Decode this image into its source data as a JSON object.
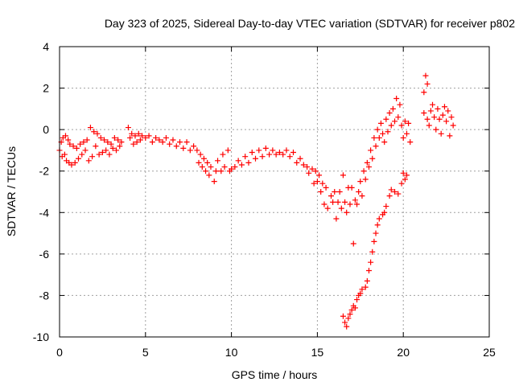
{
  "chart_data": {
    "type": "scatter",
    "title": "Day 323 of 2025, Sidereal Day-to-day VTEC variation (SDTVAR) for receiver p802",
    "xlabel": "GPS time / hours",
    "ylabel": "SDTVAR / TECUs",
    "xlim": [
      0,
      25
    ],
    "ylim": [
      -10,
      4
    ],
    "x_ticks": [
      0,
      5,
      10,
      15,
      20,
      25
    ],
    "x_tick_labels": [
      "0",
      "5",
      "10",
      "15",
      "20",
      "25"
    ],
    "y_ticks": [
      -10,
      -8,
      -6,
      -4,
      -2,
      0,
      2,
      4
    ],
    "y_tick_labels": [
      "-10",
      "-8",
      "-6",
      "-4",
      "-2",
      "0",
      "2",
      "4"
    ],
    "grid": true,
    "marker": "+",
    "color": "#ff0000",
    "series": [
      {
        "name": "SDTVAR",
        "points": [
          [
            0.0,
            -1.0
          ],
          [
            0.1,
            -0.6
          ],
          [
            0.15,
            -1.3
          ],
          [
            0.2,
            -0.4
          ],
          [
            0.3,
            -1.2
          ],
          [
            0.35,
            -0.3
          ],
          [
            0.4,
            -1.5
          ],
          [
            0.5,
            -0.5
          ],
          [
            0.55,
            -1.6
          ],
          [
            0.6,
            -0.7
          ],
          [
            0.7,
            -1.7
          ],
          [
            0.8,
            -0.8
          ],
          [
            0.9,
            -1.6
          ],
          [
            1.0,
            -0.9
          ],
          [
            1.1,
            -1.4
          ],
          [
            1.2,
            -0.7
          ],
          [
            1.3,
            -1.2
          ],
          [
            1.4,
            -0.6
          ],
          [
            1.5,
            -1.0
          ],
          [
            1.6,
            -0.5
          ],
          [
            1.7,
            -1.5
          ],
          [
            1.8,
            0.1
          ],
          [
            1.9,
            -1.3
          ],
          [
            2.0,
            -0.1
          ],
          [
            2.1,
            -0.8
          ],
          [
            2.2,
            -0.2
          ],
          [
            2.3,
            -1.2
          ],
          [
            2.4,
            -0.4
          ],
          [
            2.5,
            -1.1
          ],
          [
            2.6,
            -0.5
          ],
          [
            2.7,
            -1.0
          ],
          [
            2.8,
            -0.6
          ],
          [
            2.9,
            -1.2
          ],
          [
            3.0,
            -0.7
          ],
          [
            3.1,
            -0.9
          ],
          [
            3.2,
            -0.4
          ],
          [
            3.3,
            -1.0
          ],
          [
            3.4,
            -0.5
          ],
          [
            3.5,
            -0.8
          ],
          [
            3.6,
            -0.6
          ],
          [
            4.0,
            0.1
          ],
          [
            4.1,
            -0.4
          ],
          [
            4.2,
            -0.2
          ],
          [
            4.3,
            -0.7
          ],
          [
            4.4,
            -0.3
          ],
          [
            4.5,
            -0.6
          ],
          [
            4.6,
            -0.2
          ],
          [
            4.7,
            -0.5
          ],
          [
            4.8,
            -0.3
          ],
          [
            5.0,
            -0.4
          ],
          [
            5.2,
            -0.3
          ],
          [
            5.4,
            -0.6
          ],
          [
            5.6,
            -0.4
          ],
          [
            5.8,
            -0.5
          ],
          [
            6.0,
            -0.6
          ],
          [
            6.2,
            -0.4
          ],
          [
            6.4,
            -0.7
          ],
          [
            6.6,
            -0.5
          ],
          [
            6.8,
            -0.8
          ],
          [
            7.0,
            -0.6
          ],
          [
            7.2,
            -0.9
          ],
          [
            7.4,
            -0.6
          ],
          [
            7.6,
            -1.0
          ],
          [
            7.8,
            -0.8
          ],
          [
            8.0,
            -1.0
          ],
          [
            8.1,
            -1.6
          ],
          [
            8.2,
            -1.2
          ],
          [
            8.3,
            -1.8
          ],
          [
            8.4,
            -1.4
          ],
          [
            8.5,
            -2.0
          ],
          [
            8.6,
            -1.6
          ],
          [
            8.7,
            -2.2
          ],
          [
            8.8,
            -1.8
          ],
          [
            9.0,
            -2.5
          ],
          [
            9.1,
            -2.0
          ],
          [
            9.2,
            -1.5
          ],
          [
            9.4,
            -2.0
          ],
          [
            9.5,
            -1.2
          ],
          [
            9.6,
            -1.8
          ],
          [
            9.8,
            -1.0
          ],
          [
            9.9,
            -2.0
          ],
          [
            10.0,
            -1.9
          ],
          [
            10.2,
            -1.8
          ],
          [
            10.4,
            -1.5
          ],
          [
            10.6,
            -1.7
          ],
          [
            10.8,
            -1.3
          ],
          [
            11.0,
            -1.6
          ],
          [
            11.2,
            -1.1
          ],
          [
            11.4,
            -1.4
          ],
          [
            11.6,
            -1.0
          ],
          [
            11.8,
            -1.3
          ],
          [
            12.0,
            -0.9
          ],
          [
            12.2,
            -1.2
          ],
          [
            12.4,
            -1.0
          ],
          [
            12.6,
            -1.2
          ],
          [
            12.8,
            -1.1
          ],
          [
            13.0,
            -1.2
          ],
          [
            13.2,
            -1.0
          ],
          [
            13.4,
            -1.3
          ],
          [
            13.6,
            -1.1
          ],
          [
            13.8,
            -1.6
          ],
          [
            14.0,
            -1.4
          ],
          [
            14.2,
            -1.7
          ],
          [
            14.4,
            -1.8
          ],
          [
            14.5,
            -2.1
          ],
          [
            14.7,
            -1.9
          ],
          [
            14.8,
            -2.6
          ],
          [
            14.9,
            -2.0
          ],
          [
            15.0,
            -2.5
          ],
          [
            15.1,
            -2.2
          ],
          [
            15.2,
            -3.0
          ],
          [
            15.3,
            -2.6
          ],
          [
            15.4,
            -3.6
          ],
          [
            15.5,
            -2.8
          ],
          [
            15.6,
            -3.8
          ],
          [
            15.8,
            -3.2
          ],
          [
            15.9,
            -3.5
          ],
          [
            16.0,
            -3.0
          ],
          [
            16.1,
            -4.3
          ],
          [
            16.2,
            -3.5
          ],
          [
            16.3,
            -3.0
          ],
          [
            16.4,
            -3.8
          ],
          [
            16.5,
            -2.2
          ],
          [
            16.6,
            -3.5
          ],
          [
            16.7,
            -4.0
          ],
          [
            16.8,
            -2.8
          ],
          [
            16.9,
            -3.6
          ],
          [
            17.0,
            -2.8
          ],
          [
            17.1,
            -5.5
          ],
          [
            17.2,
            -3.4
          ],
          [
            17.3,
            -3.6
          ],
          [
            17.4,
            -3.0
          ],
          [
            17.5,
            -2.5
          ],
          [
            17.6,
            -3.2
          ],
          [
            17.7,
            -2.0
          ],
          [
            17.8,
            -2.4
          ],
          [
            17.9,
            -1.6
          ],
          [
            18.0,
            -1.8
          ],
          [
            18.1,
            -1.0
          ],
          [
            18.2,
            -1.4
          ],
          [
            18.3,
            -0.4
          ],
          [
            18.4,
            -0.8
          ],
          [
            18.5,
            0.0
          ],
          [
            18.6,
            -0.4
          ],
          [
            18.7,
            0.3
          ],
          [
            18.8,
            -0.2
          ],
          [
            18.9,
            -0.6
          ],
          [
            19.0,
            0.5
          ],
          [
            19.1,
            -0.1
          ],
          [
            19.2,
            0.8
          ],
          [
            19.3,
            0.2
          ],
          [
            19.4,
            1.0
          ],
          [
            19.5,
            0.4
          ],
          [
            19.6,
            1.5
          ],
          [
            19.7,
            0.6
          ],
          [
            19.8,
            1.2
          ],
          [
            19.9,
            0.2
          ],
          [
            20.0,
            -0.4
          ],
          [
            20.1,
            0.4
          ],
          [
            20.2,
            -0.2
          ],
          [
            20.3,
            0.3
          ],
          [
            20.4,
            -0.6
          ],
          [
            16.5,
            -9.0
          ],
          [
            16.6,
            -9.3
          ],
          [
            16.7,
            -9.5
          ],
          [
            16.8,
            -9.1
          ],
          [
            16.9,
            -8.9
          ],
          [
            17.0,
            -8.7
          ],
          [
            17.1,
            -8.5
          ],
          [
            17.2,
            -8.6
          ],
          [
            17.3,
            -8.2
          ],
          [
            17.4,
            -8.0
          ],
          [
            17.5,
            -7.9
          ],
          [
            17.6,
            -7.7
          ],
          [
            17.8,
            -7.6
          ],
          [
            17.9,
            -7.3
          ],
          [
            18.0,
            -6.8
          ],
          [
            18.1,
            -6.4
          ],
          [
            18.2,
            -5.9
          ],
          [
            18.3,
            -5.4
          ],
          [
            18.4,
            -5.0
          ],
          [
            18.5,
            -4.6
          ],
          [
            18.6,
            -4.3
          ],
          [
            18.8,
            -4.1
          ],
          [
            18.9,
            -4.0
          ],
          [
            19.0,
            -3.7
          ],
          [
            19.2,
            -3.2
          ],
          [
            19.3,
            -2.9
          ],
          [
            19.5,
            -3.0
          ],
          [
            19.7,
            -3.1
          ],
          [
            19.9,
            -2.6
          ],
          [
            20.0,
            -2.1
          ],
          [
            20.1,
            -2.4
          ],
          [
            20.2,
            -2.2
          ],
          [
            21.2,
            1.8
          ],
          [
            21.3,
            2.6
          ],
          [
            21.4,
            2.2
          ],
          [
            21.2,
            0.8
          ],
          [
            21.4,
            0.5
          ],
          [
            21.5,
            0.2
          ],
          [
            21.6,
            0.9
          ],
          [
            21.7,
            1.2
          ],
          [
            21.8,
            0.6
          ],
          [
            21.9,
            0.0
          ],
          [
            22.0,
            1.0
          ],
          [
            22.1,
            0.5
          ],
          [
            22.2,
            -0.2
          ],
          [
            22.3,
            0.7
          ],
          [
            22.4,
            1.1
          ],
          [
            22.5,
            0.4
          ],
          [
            22.6,
            0.9
          ],
          [
            22.7,
            -0.3
          ],
          [
            22.8,
            0.6
          ],
          [
            22.9,
            0.2
          ]
        ]
      }
    ]
  }
}
